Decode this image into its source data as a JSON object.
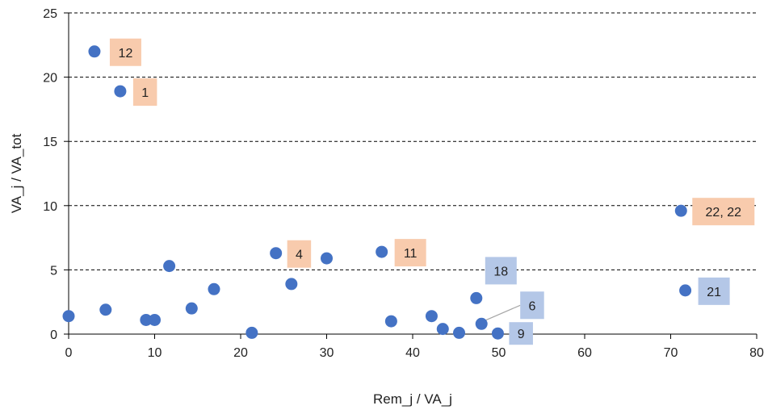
{
  "chart_data": {
    "type": "scatter",
    "title": "",
    "xlabel": "Rem_j / VA_j",
    "ylabel": "VA_j / VA_tot",
    "xlim": [
      0,
      80
    ],
    "ylim": [
      0,
      25
    ],
    "xticks": [
      0,
      10,
      20,
      30,
      40,
      50,
      60,
      70,
      80
    ],
    "yticks": [
      0,
      5,
      10,
      15,
      20,
      25
    ],
    "grid": "horizontal dashed",
    "legend": "none",
    "marker_color": "#4472C4",
    "series": [
      {
        "points": [
          {
            "x": 3.0,
            "y": 22.0
          },
          {
            "x": 6.0,
            "y": 18.9
          },
          {
            "x": 0.0,
            "y": 1.4
          },
          {
            "x": 4.3,
            "y": 1.9
          },
          {
            "x": 9.0,
            "y": 1.1
          },
          {
            "x": 10.0,
            "y": 1.1
          },
          {
            "x": 11.7,
            "y": 5.3
          },
          {
            "x": 14.3,
            "y": 2.0
          },
          {
            "x": 16.9,
            "y": 3.5
          },
          {
            "x": 21.3,
            "y": 0.1
          },
          {
            "x": 24.1,
            "y": 6.3
          },
          {
            "x": 25.9,
            "y": 3.9
          },
          {
            "x": 30.0,
            "y": 5.9
          },
          {
            "x": 36.4,
            "y": 6.4
          },
          {
            "x": 37.5,
            "y": 1.0
          },
          {
            "x": 42.2,
            "y": 1.4
          },
          {
            "x": 43.5,
            "y": 0.4
          },
          {
            "x": 45.4,
            "y": 0.1
          },
          {
            "x": 47.4,
            "y": 2.8
          },
          {
            "x": 48.0,
            "y": 0.8
          },
          {
            "x": 49.9,
            "y": 0.05
          },
          {
            "x": 71.2,
            "y": 9.6
          },
          {
            "x": 71.7,
            "y": 3.4
          }
        ]
      }
    ],
    "annotations": [
      {
        "text": "12",
        "point": 0,
        "fill": "#F8CBAD"
      },
      {
        "text": "1",
        "point": 1,
        "fill": "#F8CBAD"
      },
      {
        "text": "4",
        "point": 10,
        "fill": "#F8CBAD"
      },
      {
        "text": "11",
        "point": 13,
        "fill": "#F8CBAD"
      },
      {
        "text": "22, 22",
        "point": 21,
        "fill": "#F8CBAD"
      },
      {
        "text": "18",
        "point": 18,
        "fill": "#B4C7E7"
      },
      {
        "text": "6",
        "point": 19,
        "fill": "#B4C7E7"
      },
      {
        "text": "9",
        "point": 20,
        "fill": "#B4C7E7"
      },
      {
        "text": "21",
        "point": 22,
        "fill": "#B4C7E7"
      }
    ]
  }
}
